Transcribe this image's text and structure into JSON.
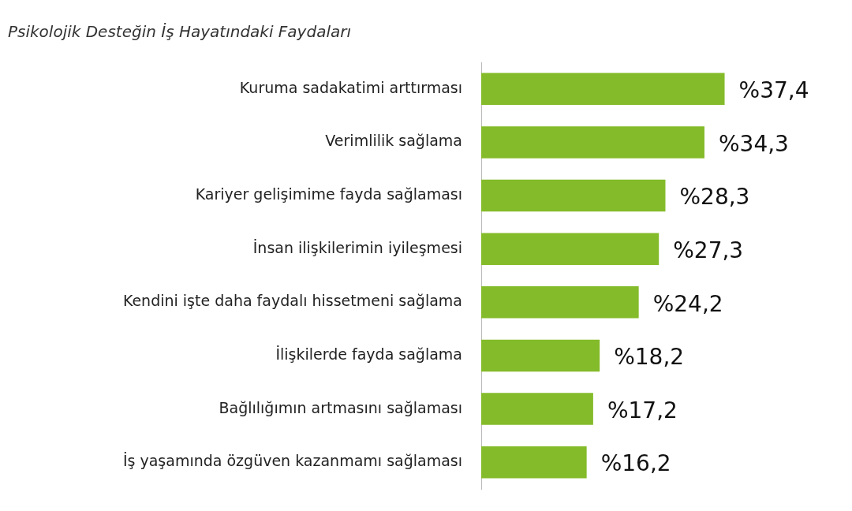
{
  "chart_data": {
    "type": "bar",
    "orientation": "horizontal",
    "title": "Psikolojik Desteğin İş Hayatındaki Faydaları",
    "categories": [
      "Kuruma sadakatimi arttırması",
      "Verimlilik sağlama",
      "Kariyer gelişimime fayda sağlaması",
      "İnsan ilişkilerimin iyileşmesi",
      "Kendini işte daha faydalı hissetmeni sağlama",
      "İlişkilerde fayda sağlama",
      "Bağlılığımın artmasını sağlaması",
      "İş yaşamında özgüven kazanmamı sağlaması"
    ],
    "values": [
      37.4,
      34.3,
      28.3,
      27.3,
      24.2,
      18.2,
      17.2,
      16.2
    ],
    "value_labels": [
      "%37,4",
      "%34,3",
      "%28,3",
      "%27,3",
      "%24,2",
      "%18,2",
      "%17,2",
      "%16,2"
    ],
    "color": "#84bb2a",
    "grid": false,
    "legend": false,
    "tick_labels": "y"
  }
}
